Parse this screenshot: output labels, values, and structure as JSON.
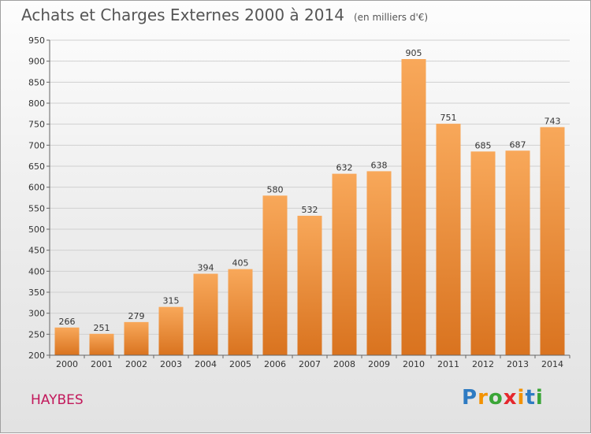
{
  "title": "Achats et Charges Externes 2000 à 2014",
  "unit_note": "(en milliers d'€)",
  "location": "HAYBES",
  "logo": {
    "letters": [
      "P",
      "r",
      "o",
      "x",
      "i",
      "t",
      "i"
    ],
    "colors": [
      "#2e7bc2",
      "#f39200",
      "#3aa537",
      "#e5272d",
      "#f39200",
      "#2e7bc2",
      "#3aa537"
    ]
  },
  "colors": {
    "bar_light": "#f8a85a",
    "bar_dark": "#d9731f"
  },
  "chart_data": {
    "type": "bar",
    "categories": [
      "2000",
      "2001",
      "2002",
      "2003",
      "2004",
      "2005",
      "2006",
      "2007",
      "2008",
      "2009",
      "2010",
      "2011",
      "2012",
      "2013",
      "2014"
    ],
    "values": [
      266,
      251,
      279,
      315,
      394,
      405,
      580,
      532,
      632,
      638,
      905,
      751,
      685,
      687,
      743
    ],
    "ylim": [
      200,
      950
    ],
    "yticks": [
      200,
      250,
      300,
      350,
      400,
      450,
      500,
      550,
      600,
      650,
      700,
      750,
      800,
      850,
      900,
      950
    ],
    "grid": true
  }
}
